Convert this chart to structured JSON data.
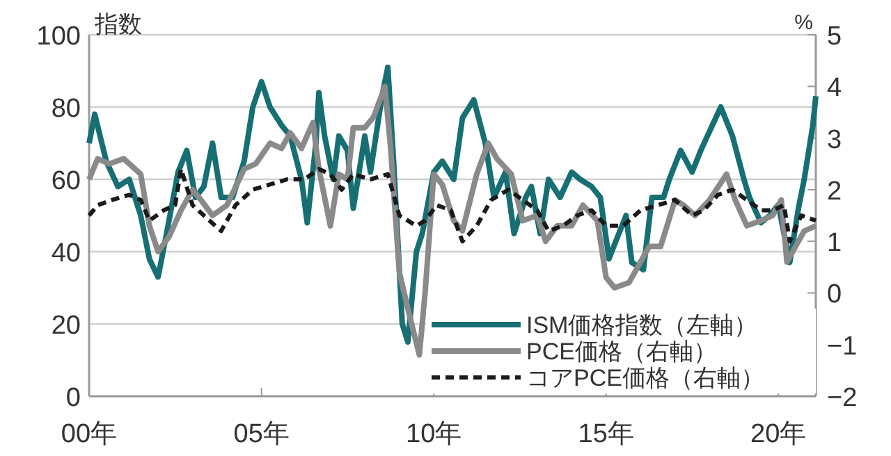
{
  "chart_data": {
    "type": "line",
    "ylabel": "指数",
    "y2label": "%",
    "xlim": [
      "2000-01",
      "2021-02"
    ],
    "xticks": [
      {
        "value": "2000",
        "label": "00年"
      },
      {
        "value": "2005",
        "label": "05年"
      },
      {
        "value": "2010",
        "label": "10年"
      },
      {
        "value": "2015",
        "label": "15年"
      },
      {
        "value": "2020",
        "label": "20年"
      }
    ],
    "ylim": [
      0,
      100
    ],
    "yticks": [
      0,
      20,
      40,
      60,
      80,
      100
    ],
    "y2lim": [
      -2,
      5
    ],
    "y2ticks": [
      {
        "value": -2,
        "label": "−2"
      },
      {
        "value": -1,
        "label": "−1"
      },
      0,
      1,
      2,
      3,
      4,
      5
    ],
    "grid": "y",
    "legend": "bottom right",
    "series": [
      {
        "name": "ISM価格指数（左軸）",
        "color": "#176f74",
        "line_style": "solid",
        "x": [
          "2000-01",
          "2000-03",
          "2000-07",
          "2000-11",
          "2001-03",
          "2001-07",
          "2001-10",
          "2002-01",
          "2002-04",
          "2002-08",
          "2002-11",
          "2003-02",
          "2003-05",
          "2003-08",
          "2003-11",
          "2004-03",
          "2004-07",
          "2004-10",
          "2005-01",
          "2005-04",
          "2005-08",
          "2005-11",
          "2006-03",
          "2006-05",
          "2006-08",
          "2006-09",
          "2006-11",
          "2007-02",
          "2007-04",
          "2007-07",
          "2007-09",
          "2008-01",
          "2008-03",
          "2008-07",
          "2008-09",
          "2008-11",
          "2009-02",
          "2009-04",
          "2009-07",
          "2009-09",
          "2010-01",
          "2010-04",
          "2010-08",
          "2010-11",
          "2011-03",
          "2011-07",
          "2011-10",
          "2012-02",
          "2012-05",
          "2012-09",
          "2012-11",
          "2013-02",
          "2013-05",
          "2013-09",
          "2014-01",
          "2014-04",
          "2014-08",
          "2014-11",
          "2015-02",
          "2015-04",
          "2015-08",
          "2015-10",
          "2016-02",
          "2016-05",
          "2016-09",
          "2016-11",
          "2017-03",
          "2017-07",
          "2017-10",
          "2018-02",
          "2018-05",
          "2018-09",
          "2019-01",
          "2019-03",
          "2019-07",
          "2019-10",
          "2020-01",
          "2020-03",
          "2020-05",
          "2020-08",
          "2020-10",
          "2021-01",
          "2021-02"
        ],
        "values": [
          70,
          78,
          65,
          58,
          60,
          50,
          38,
          33,
          45,
          62,
          68,
          55,
          58,
          70,
          55,
          55,
          65,
          80,
          87,
          80,
          75,
          72,
          60,
          48,
          70,
          84,
          72,
          60,
          72,
          68,
          52,
          72,
          62,
          83,
          91,
          65,
          20,
          15,
          40,
          45,
          62,
          65,
          60,
          77,
          82,
          70,
          55,
          62,
          45,
          55,
          58,
          45,
          60,
          55,
          62,
          60,
          58,
          55,
          38,
          42,
          50,
          37,
          35,
          55,
          55,
          60,
          68,
          62,
          68,
          75,
          80,
          72,
          60,
          55,
          48,
          50,
          53,
          45,
          37,
          52,
          60,
          75,
          83
        ]
      },
      {
        "name": "PCE価格（右軸）",
        "color": "#8a8a8a",
        "axis": "y2",
        "line_style": "solid",
        "x": [
          "2000-01",
          "2000-04",
          "2000-08",
          "2001-01",
          "2001-07",
          "2001-10",
          "2002-01",
          "2002-05",
          "2002-09",
          "2003-01",
          "2003-04",
          "2003-08",
          "2004-01",
          "2004-07",
          "2004-11",
          "2005-04",
          "2005-08",
          "2005-11",
          "2006-03",
          "2006-07",
          "2006-09",
          "2007-01",
          "2007-04",
          "2007-07",
          "2007-09",
          "2008-01",
          "2008-04",
          "2008-08",
          "2008-10",
          "2009-01",
          "2009-04",
          "2009-08",
          "2009-10",
          "2010-01",
          "2010-04",
          "2010-08",
          "2010-11",
          "2011-04",
          "2011-08",
          "2011-11",
          "2012-04",
          "2012-08",
          "2013-01",
          "2013-04",
          "2013-08",
          "2014-01",
          "2014-05",
          "2014-10",
          "2015-01",
          "2015-04",
          "2015-09",
          "2016-01",
          "2016-04",
          "2016-08",
          "2017-01",
          "2017-04",
          "2017-08",
          "2018-01",
          "2018-07",
          "2018-10",
          "2019-02",
          "2019-07",
          "2019-11",
          "2020-02",
          "2020-04",
          "2020-07",
          "2020-10",
          "2021-02"
        ],
        "values": [
          2.2,
          2.6,
          2.5,
          2.6,
          2.3,
          1.3,
          0.8,
          1.1,
          1.6,
          2.0,
          1.8,
          1.5,
          1.7,
          2.4,
          2.5,
          2.9,
          2.8,
          3.1,
          2.8,
          3.3,
          2.4,
          1.3,
          2.3,
          2.2,
          3.2,
          3.2,
          3.4,
          4.0,
          2.8,
          0.4,
          -0.3,
          -1.2,
          0.0,
          2.3,
          2.1,
          1.4,
          1.2,
          2.3,
          2.9,
          2.6,
          2.3,
          1.4,
          1.5,
          1.0,
          1.3,
          1.3,
          1.7,
          1.4,
          0.3,
          0.1,
          0.2,
          0.6,
          0.9,
          0.9,
          1.8,
          1.7,
          1.5,
          1.8,
          2.3,
          1.8,
          1.3,
          1.4,
          1.5,
          1.8,
          0.6,
          0.9,
          1.2,
          1.3
        ]
      },
      {
        "name": "コアPCE価格（右軸）",
        "color": "#1a1a1a",
        "axis": "y2",
        "line_style": "dashed",
        "x": [
          "2000-01",
          "2000-04",
          "2000-09",
          "2001-03",
          "2001-07",
          "2001-10",
          "2002-03",
          "2002-07",
          "2002-09",
          "2003-01",
          "2003-07",
          "2003-11",
          "2004-04",
          "2004-10",
          "2005-04",
          "2005-10",
          "2006-04",
          "2006-09",
          "2007-01",
          "2007-05",
          "2007-09",
          "2008-03",
          "2008-09",
          "2009-01",
          "2009-07",
          "2009-10",
          "2010-02",
          "2010-07",
          "2010-11",
          "2011-04",
          "2011-09",
          "2012-03",
          "2012-08",
          "2013-01",
          "2013-05",
          "2013-10",
          "2014-03",
          "2014-08",
          "2015-01",
          "2015-07",
          "2016-01",
          "2016-07",
          "2017-01",
          "2017-07",
          "2017-11",
          "2018-04",
          "2018-09",
          "2019-02",
          "2019-07",
          "2019-11",
          "2020-03",
          "2020-05",
          "2020-09",
          "2021-02"
        ],
        "values": [
          1.5,
          1.7,
          1.8,
          1.9,
          1.8,
          1.4,
          1.6,
          1.7,
          2.4,
          1.7,
          1.4,
          1.2,
          1.7,
          2.0,
          2.1,
          2.2,
          2.2,
          2.4,
          2.3,
          2.0,
          2.3,
          2.2,
          2.3,
          1.5,
          1.3,
          1.4,
          1.7,
          1.6,
          1.0,
          1.3,
          1.8,
          2.0,
          1.8,
          1.6,
          1.2,
          1.3,
          1.5,
          1.6,
          1.3,
          1.3,
          1.6,
          1.7,
          1.8,
          1.5,
          1.6,
          1.9,
          2.0,
          1.8,
          1.6,
          1.6,
          1.7,
          1.0,
          1.5,
          1.4
        ]
      }
    ]
  }
}
